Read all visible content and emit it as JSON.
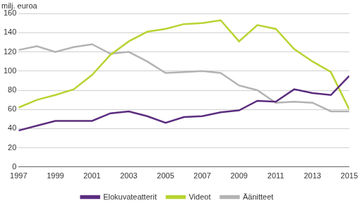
{
  "chart_data": {
    "type": "line",
    "ylabel": "milj. euroa",
    "x": [
      1997,
      1998,
      1999,
      2000,
      2001,
      2002,
      2003,
      2004,
      2005,
      2006,
      2007,
      2008,
      2009,
      2010,
      2011,
      2012,
      2013,
      2014,
      2015
    ],
    "series": [
      {
        "name": "Elokuvateatterit",
        "color": "#5c2d7f",
        "values": [
          38,
          43,
          48,
          48,
          48,
          56,
          58,
          53,
          46,
          52,
          53,
          57,
          59,
          69,
          68,
          81,
          77,
          75,
          95
        ]
      },
      {
        "name": "Videot",
        "color": "#b7d432",
        "values": [
          62,
          70,
          75,
          81,
          96,
          117,
          131,
          141,
          144,
          149,
          150,
          153,
          131,
          148,
          144,
          123,
          110,
          99,
          60
        ]
      },
      {
        "name": "Äänitteet",
        "color": "#b3b3b3",
        "values": [
          122,
          126,
          120,
          125,
          128,
          118,
          120,
          110,
          98,
          99,
          100,
          98,
          85,
          80,
          67,
          68,
          67,
          58,
          58
        ]
      }
    ],
    "xlim": [
      1997,
      2015
    ],
    "xticks": [
      1997,
      1999,
      2001,
      2003,
      2005,
      2007,
      2009,
      2011,
      2013,
      2015
    ],
    "ylim": [
      0,
      160
    ],
    "yticks": [
      0,
      20,
      40,
      60,
      80,
      100,
      120,
      140,
      160
    ],
    "grid": true,
    "legend": "bottom"
  }
}
